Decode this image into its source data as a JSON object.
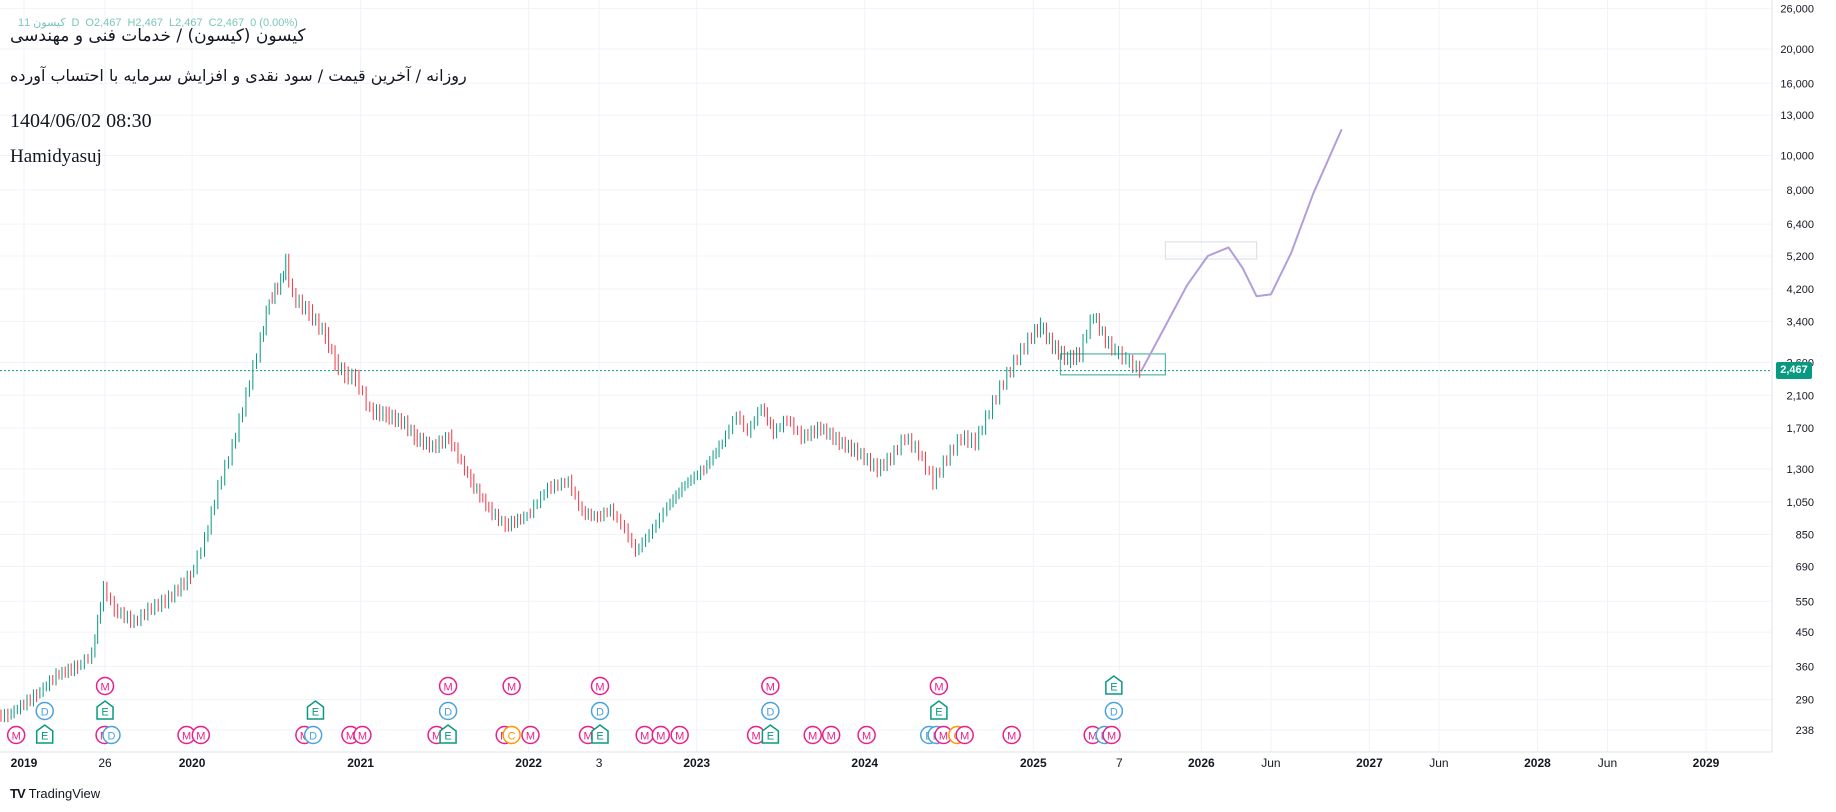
{
  "legend": {
    "symbol": "کیسون 1",
    "interval": "1D",
    "open": "O2,467",
    "high": "H2,467",
    "low": "L2,467",
    "close": "C2,467",
    "change": "0 (0.00%)"
  },
  "header": {
    "title": "کیسون (کیسون) / خدمات فنی و مهندسی",
    "subtitle": "روزانه / آخرین قیمت / سود نقدی و افزایش سرمایه با احتساب آورده",
    "datetime": "1404/06/02 08:30",
    "author": "Hamidyasuj"
  },
  "branding": {
    "name": "TradingView",
    "logo": "TV"
  },
  "price_badge": "2,467",
  "colors": {
    "up": "#089981",
    "down": "#f23645",
    "projection": "#b39ddb",
    "event_m": "#e91e8c",
    "event_d": "#4aa3df",
    "event_e": "#089981",
    "event_c": "#ff9800",
    "grid": "#f0f3fa"
  },
  "chart_data": {
    "type": "line",
    "scale": "log",
    "grid": true,
    "ylim": [
      225,
      26500
    ],
    "x_tick_labels": [
      {
        "label": "2019",
        "date": "2019-01-01"
      },
      {
        "label": "26",
        "date": "2019-06-26"
      },
      {
        "label": "2020",
        "date": "2020-01-01"
      },
      {
        "label": "2021",
        "date": "2021-01-01"
      },
      {
        "label": "2022",
        "date": "2022-01-01"
      },
      {
        "label": "3",
        "date": "2022-06-03"
      },
      {
        "label": "2023",
        "date": "2023-01-01"
      },
      {
        "label": "2024",
        "date": "2024-01-01"
      },
      {
        "label": "2025",
        "date": "2025-01-01"
      },
      {
        "label": "7",
        "date": "2025-07-07"
      },
      {
        "label": "2026",
        "date": "2026-01-01"
      },
      {
        "label": "Jun",
        "date": "2026-06-01"
      },
      {
        "label": "2027",
        "date": "2027-01-01"
      },
      {
        "label": "Jun",
        "date": "2027-06-01"
      },
      {
        "label": "2028",
        "date": "2028-01-01"
      },
      {
        "label": "Jun",
        "date": "2028-06-01"
      },
      {
        "label": "2029",
        "date": "2029-01-01"
      }
    ],
    "y_tick_labels": [
      "238",
      "290",
      "360",
      "450",
      "550",
      "690",
      "850",
      "1,050",
      "1,300",
      "1,700",
      "2,100",
      "2,600",
      "3,400",
      "4,200",
      "5,200",
      "6,400",
      "8,000",
      "10,000",
      "13,000",
      "16,000",
      "20,000",
      "26,000"
    ],
    "y_tick_values": [
      238,
      290,
      360,
      450,
      550,
      690,
      850,
      1050,
      1300,
      1700,
      2100,
      2600,
      3400,
      4200,
      5200,
      6400,
      8000,
      10000,
      13000,
      16000,
      20000,
      26000
    ],
    "last_price": 2467,
    "series": [
      {
        "points": [
          {
            "date": "2018-10-10",
            "value": 260
          },
          {
            "date": "2018-12-01",
            "value": 262
          },
          {
            "date": "2019-02-01",
            "value": 300
          },
          {
            "date": "2019-03-15",
            "value": 340
          },
          {
            "date": "2019-05-01",
            "value": 360
          },
          {
            "date": "2019-06-01",
            "value": 390
          },
          {
            "date": "2019-06-26",
            "value": 600
          },
          {
            "date": "2019-07-20",
            "value": 520
          },
          {
            "date": "2019-09-01",
            "value": 480
          },
          {
            "date": "2019-10-01",
            "value": 520
          },
          {
            "date": "2019-11-15",
            "value": 560
          },
          {
            "date": "2020-01-01",
            "value": 650
          },
          {
            "date": "2020-02-01",
            "value": 820
          },
          {
            "date": "2020-03-01",
            "value": 1150
          },
          {
            "date": "2020-04-01",
            "value": 1500
          },
          {
            "date": "2020-05-01",
            "value": 2100
          },
          {
            "date": "2020-06-01",
            "value": 3000
          },
          {
            "date": "2020-06-20",
            "value": 3900
          },
          {
            "date": "2020-07-15",
            "value": 4400
          },
          {
            "date": "2020-07-25",
            "value": 5000
          },
          {
            "date": "2020-08-10",
            "value": 4000
          },
          {
            "date": "2020-09-15",
            "value": 3600
          },
          {
            "date": "2020-10-20",
            "value": 3100
          },
          {
            "date": "2020-11-10",
            "value": 2600
          },
          {
            "date": "2020-12-01",
            "value": 2400
          },
          {
            "date": "2020-12-25",
            "value": 2350
          },
          {
            "date": "2021-01-25",
            "value": 1900
          },
          {
            "date": "2021-03-01",
            "value": 1850
          },
          {
            "date": "2021-04-10",
            "value": 1750
          },
          {
            "date": "2021-05-01",
            "value": 1600
          },
          {
            "date": "2021-06-10",
            "value": 1500
          },
          {
            "date": "2021-07-15",
            "value": 1600
          },
          {
            "date": "2021-09-01",
            "value": 1200
          },
          {
            "date": "2021-10-10",
            "value": 1000
          },
          {
            "date": "2021-11-15",
            "value": 900
          },
          {
            "date": "2022-01-01",
            "value": 960
          },
          {
            "date": "2022-02-15",
            "value": 1150
          },
          {
            "date": "2022-04-01",
            "value": 1200
          },
          {
            "date": "2022-05-01",
            "value": 980
          },
          {
            "date": "2022-06-03",
            "value": 950
          },
          {
            "date": "2022-07-01",
            "value": 1000
          },
          {
            "date": "2022-08-01",
            "value": 880
          },
          {
            "date": "2022-08-25",
            "value": 760
          },
          {
            "date": "2022-10-01",
            "value": 880
          },
          {
            "date": "2022-11-01",
            "value": 1020
          },
          {
            "date": "2022-12-10",
            "value": 1180
          },
          {
            "date": "2023-01-20",
            "value": 1300
          },
          {
            "date": "2023-03-01",
            "value": 1550
          },
          {
            "date": "2023-04-01",
            "value": 1850
          },
          {
            "date": "2023-04-25",
            "value": 1650
          },
          {
            "date": "2023-05-25",
            "value": 1950
          },
          {
            "date": "2023-06-20",
            "value": 1650
          },
          {
            "date": "2023-07-20",
            "value": 1800
          },
          {
            "date": "2023-08-20",
            "value": 1600
          },
          {
            "date": "2023-10-01",
            "value": 1700
          },
          {
            "date": "2023-11-10",
            "value": 1550
          },
          {
            "date": "2023-12-20",
            "value": 1450
          },
          {
            "date": "2024-02-01",
            "value": 1300
          },
          {
            "date": "2024-03-01",
            "value": 1400
          },
          {
            "date": "2024-04-01",
            "value": 1600
          },
          {
            "date": "2024-05-01",
            "value": 1450
          },
          {
            "date": "2024-06-01",
            "value": 1200
          },
          {
            "date": "2024-07-01",
            "value": 1400
          },
          {
            "date": "2024-08-01",
            "value": 1600
          },
          {
            "date": "2024-09-01",
            "value": 1550
          },
          {
            "date": "2024-10-01",
            "value": 1900
          },
          {
            "date": "2024-11-01",
            "value": 2300
          },
          {
            "date": "2024-12-01",
            "value": 2700
          },
          {
            "date": "2025-01-01",
            "value": 3100
          },
          {
            "date": "2025-01-20",
            "value": 3300
          },
          {
            "date": "2025-02-15",
            "value": 2900
          },
          {
            "date": "2025-03-20",
            "value": 2650
          },
          {
            "date": "2025-04-15",
            "value": 2750
          },
          {
            "date": "2025-05-01",
            "value": 3200
          },
          {
            "date": "2025-05-15",
            "value": 3550
          },
          {
            "date": "2025-06-10",
            "value": 3000
          },
          {
            "date": "2025-07-01",
            "value": 2800
          },
          {
            "date": "2025-07-25",
            "value": 2650
          },
          {
            "date": "2025-08-24",
            "value": 2467
          }
        ]
      },
      {
        "points": [
          {
            "date": "2025-08-24",
            "value": 2467
          },
          {
            "date": "2025-10-15",
            "value": 3300
          },
          {
            "date": "2025-12-01",
            "value": 4300
          },
          {
            "date": "2026-01-15",
            "value": 5200
          },
          {
            "date": "2026-03-01",
            "value": 5500
          },
          {
            "date": "2026-04-01",
            "value": 4800
          },
          {
            "date": "2026-05-01",
            "value": 4000
          },
          {
            "date": "2026-06-01",
            "value": 4050
          },
          {
            "date": "2026-07-15",
            "value": 5300
          },
          {
            "date": "2026-09-01",
            "value": 7800
          },
          {
            "date": "2026-11-01",
            "value": 11800
          }
        ]
      }
    ],
    "zones": [
      {
        "from": "2025-03-01",
        "to": "2025-10-15",
        "low": 2400,
        "high": 2750,
        "color": "#089981"
      },
      {
        "from": "2025-10-15",
        "to": "2026-05-01",
        "low": 5100,
        "high": 5700,
        "color": "#d1d4dc"
      }
    ],
    "event_rows": [
      {
        "row": "bottom",
        "events": [
          {
            "date": "2018-10-15",
            "type": "M"
          },
          {
            "date": "2018-12-15",
            "type": "M"
          },
          {
            "date": "2019-02-15",
            "type": "E"
          },
          {
            "date": "2019-06-25",
            "type": "M"
          },
          {
            "date": "2019-07-10",
            "type": "D"
          },
          {
            "date": "2019-12-20",
            "type": "M"
          },
          {
            "date": "2020-01-20",
            "type": "M"
          },
          {
            "date": "2020-09-01",
            "type": "M"
          },
          {
            "date": "2020-09-20",
            "type": "D"
          },
          {
            "date": "2020-12-10",
            "type": "M"
          },
          {
            "date": "2021-01-05",
            "type": "M"
          },
          {
            "date": "2021-06-15",
            "type": "M"
          },
          {
            "date": "2021-07-10",
            "type": "E"
          },
          {
            "date": "2021-11-10",
            "type": "M"
          },
          {
            "date": "2021-11-25",
            "type": "C"
          },
          {
            "date": "2022-01-05",
            "type": "M"
          },
          {
            "date": "2022-05-10",
            "type": "M"
          },
          {
            "date": "2022-06-05",
            "type": "E"
          },
          {
            "date": "2022-09-10",
            "type": "M"
          },
          {
            "date": "2022-10-15",
            "type": "M"
          },
          {
            "date": "2022-11-25",
            "type": "M"
          },
          {
            "date": "2023-05-10",
            "type": "M"
          },
          {
            "date": "2023-06-10",
            "type": "E"
          },
          {
            "date": "2023-09-10",
            "type": "M"
          },
          {
            "date": "2023-10-20",
            "type": "M"
          },
          {
            "date": "2024-01-05",
            "type": "M"
          },
          {
            "date": "2024-05-20",
            "type": "D"
          },
          {
            "date": "2024-06-05",
            "type": "D"
          },
          {
            "date": "2024-06-20",
            "type": "M"
          },
          {
            "date": "2024-07-20",
            "type": "C"
          },
          {
            "date": "2024-08-05",
            "type": "M"
          },
          {
            "date": "2024-11-15",
            "type": "M"
          },
          {
            "date": "2025-05-10",
            "type": "M"
          },
          {
            "date": "2025-06-05",
            "type": "D"
          },
          {
            "date": "2025-06-20",
            "type": "M"
          }
        ]
      },
      {
        "row": "middle",
        "events": [
          {
            "date": "2019-02-15",
            "type": "D"
          },
          {
            "date": "2019-06-26",
            "type": "E"
          },
          {
            "date": "2020-09-25",
            "type": "E"
          },
          {
            "date": "2021-07-10",
            "type": "D"
          },
          {
            "date": "2022-06-05",
            "type": "D"
          },
          {
            "date": "2023-06-10",
            "type": "D"
          },
          {
            "date": "2024-06-10",
            "type": "E"
          },
          {
            "date": "2025-06-25",
            "type": "D"
          }
        ]
      },
      {
        "row": "top",
        "events": [
          {
            "date": "2019-06-26",
            "type": "M"
          },
          {
            "date": "2021-07-10",
            "type": "M"
          },
          {
            "date": "2021-11-25",
            "type": "M"
          },
          {
            "date": "2022-06-05",
            "type": "M"
          },
          {
            "date": "2023-06-10",
            "type": "M"
          },
          {
            "date": "2024-06-10",
            "type": "M"
          },
          {
            "date": "2025-06-25",
            "type": "E"
          }
        ]
      }
    ]
  }
}
